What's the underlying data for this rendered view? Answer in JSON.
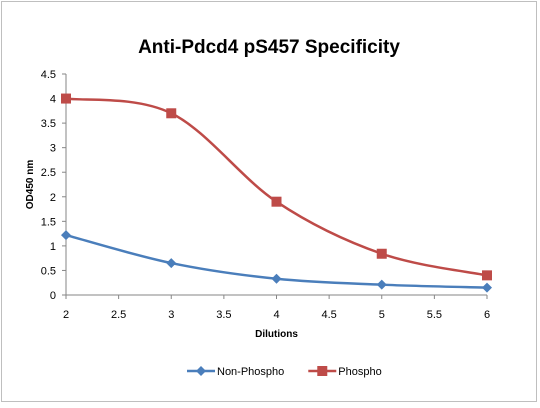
{
  "chart_data": {
    "type": "line",
    "title": "Anti-Pdcd4 pS457 Specificity",
    "xlabel": "Dilutions",
    "ylabel": "OD450 nm",
    "xlim": [
      2,
      6
    ],
    "ylim": [
      0,
      4.5
    ],
    "x_ticks": [
      "2",
      "2.5",
      "3",
      "3.5",
      "4",
      "4.5",
      "5",
      "5.5",
      "6"
    ],
    "y_ticks": [
      "0",
      "0.5",
      "1",
      "1.5",
      "2",
      "2.5",
      "3",
      "3.5",
      "4",
      "4.5"
    ],
    "grid": false,
    "legend_position": "bottom",
    "series": [
      {
        "name": "Non-Phospho",
        "color": "#4a7ebb",
        "marker": "diamond",
        "x": [
          2,
          3,
          4,
          5,
          6
        ],
        "y": [
          1.22,
          0.65,
          0.33,
          0.21,
          0.15
        ]
      },
      {
        "name": "Phospho",
        "color": "#be4b48",
        "marker": "square",
        "x": [
          2,
          3,
          4,
          5,
          6
        ],
        "y": [
          4.0,
          3.7,
          1.9,
          0.84,
          0.4
        ]
      }
    ]
  }
}
